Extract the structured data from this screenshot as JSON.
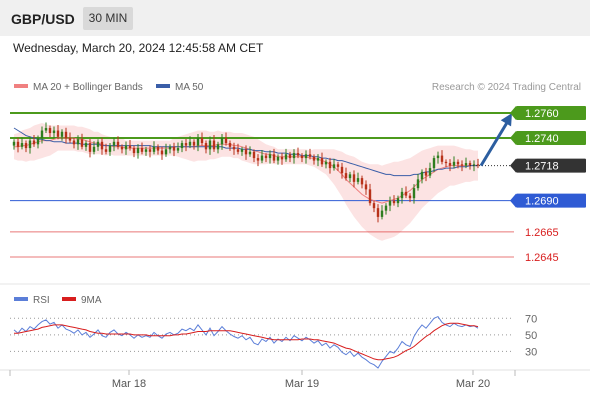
{
  "header": {
    "symbol": "GBP/USD",
    "interval": "30 MIN",
    "datetime": "Wednesday, March 20, 2024 12:45:58 AM CET"
  },
  "legend": {
    "ma20_label": "MA 20 + Bollinger Bands",
    "ma50_label": "MA 50",
    "credit": "Research © 2024 Trading Central"
  },
  "rsi_legend": {
    "rsi_label": "RSI",
    "ma_label": "9MA"
  },
  "colors": {
    "up": "#2e7d1f",
    "down": "#b8321a",
    "ma20": "#f08080",
    "ma50": "#3a5ea8",
    "band": "#fbd9d9",
    "resistance": "#4c9a1c",
    "support": "#2f5bd4",
    "target": "#d81e1e",
    "arrow": "#2c5ea0",
    "current": "#333333"
  },
  "chart_data": [
    {
      "type": "candlestick",
      "ylim": [
        1.2625,
        1.2772
      ],
      "x_ticks": [
        "Mar 18",
        "Mar 19",
        "Mar 20"
      ],
      "current_price": "1.2718",
      "levels": [
        {
          "value": 1.276,
          "label": "1.2760",
          "kind": "resistance"
        },
        {
          "value": 1.274,
          "label": "1.2740",
          "kind": "resistance"
        },
        {
          "value": 1.269,
          "label": "1.2690",
          "kind": "support"
        },
        {
          "value": 1.2665,
          "label": "1.2665",
          "kind": "target"
        },
        {
          "value": 1.2645,
          "label": "1.2645",
          "kind": "target"
        }
      ],
      "projection": {
        "from": 1.2718,
        "to": 1.276
      },
      "close": [
        1.2737,
        1.2733,
        1.2736,
        1.2732,
        1.2738,
        1.2735,
        1.274,
        1.2746,
        1.2748,
        1.2744,
        1.2746,
        1.2741,
        1.2745,
        1.274,
        1.2738,
        1.2735,
        1.2739,
        1.2733,
        1.2736,
        1.2729,
        1.2733,
        1.2737,
        1.2731,
        1.2729,
        1.2734,
        1.2737,
        1.2733,
        1.2731,
        1.2734,
        1.2732,
        1.2728,
        1.2732,
        1.2729,
        1.2731,
        1.2729,
        1.2733,
        1.273,
        1.2727,
        1.2731,
        1.2733,
        1.273,
        1.2732,
        1.2736,
        1.2734,
        1.2737,
        1.2734,
        1.274,
        1.2736,
        1.2731,
        1.2738,
        1.2731,
        1.2735,
        1.274,
        1.2736,
        1.2733,
        1.2731,
        1.2729,
        1.2731,
        1.2727,
        1.2729,
        1.2724,
        1.2722,
        1.2726,
        1.2724,
        1.2727,
        1.2722,
        1.2725,
        1.2723,
        1.2727,
        1.2724,
        1.2728,
        1.2726,
        1.2724,
        1.2727,
        1.2725,
        1.2722,
        1.2724,
        1.2719,
        1.2721,
        1.2716,
        1.2719,
        1.2717,
        1.2712,
        1.2708,
        1.2711,
        1.2705,
        1.2708,
        1.2703,
        1.2699,
        1.2688,
        1.2684,
        1.2677,
        1.2682,
        1.2686,
        1.269,
        1.2688,
        1.2692,
        1.2697,
        1.2694,
        1.2692,
        1.27,
        1.2707,
        1.2713,
        1.271,
        1.2716,
        1.2724,
        1.2726,
        1.2721,
        1.272,
        1.2718,
        1.2721,
        1.2719,
        1.2718,
        1.272,
        1.2718,
        1.2719,
        1.2718
      ],
      "ma20": [
        1.2733,
        1.2733,
        1.2734,
        1.2734,
        1.2735,
        1.2736,
        1.2737,
        1.2738,
        1.2738,
        1.2738,
        1.2739,
        1.274,
        1.274,
        1.274,
        1.274,
        1.274,
        1.2739,
        1.2739,
        1.2738,
        1.2737,
        1.2736,
        1.2736,
        1.2735,
        1.2734,
        1.2734,
        1.2733,
        1.2733,
        1.2733,
        1.2732,
        1.2732,
        1.2732,
        1.2732,
        1.2732,
        1.2732,
        1.2732,
        1.2732,
        1.2732,
        1.2732,
        1.2732,
        1.2732,
        1.2733,
        1.2733,
        1.2733,
        1.2733,
        1.2733,
        1.2733,
        1.2734,
        1.2734,
        1.2734,
        1.2734,
        1.2734,
        1.2735,
        1.2735,
        1.2735,
        1.2735,
        1.2734,
        1.2734,
        1.2733,
        1.2732,
        1.2731,
        1.273,
        1.2729,
        1.2728,
        1.2727,
        1.2727,
        1.2726,
        1.2725,
        1.2725,
        1.2725,
        1.2725,
        1.2725,
        1.2725,
        1.2725,
        1.2725,
        1.2724,
        1.2724,
        1.2723,
        1.2722,
        1.2721,
        1.2719,
        1.2717,
        1.2714,
        1.2711,
        1.2707,
        1.2704,
        1.2701,
        1.2698,
        1.2695,
        1.2693,
        1.2691,
        1.269,
        1.2689,
        1.2688,
        1.2689,
        1.269,
        1.2691,
        1.2692,
        1.2694,
        1.2696,
        1.2698,
        1.2701,
        1.2704,
        1.2707,
        1.2709,
        1.2711,
        1.2713,
        1.2715,
        1.2716,
        1.2717,
        1.2718,
        1.2718,
        1.2718,
        1.2718,
        1.2718,
        1.2718,
        1.2718,
        1.2718
      ],
      "ma50": [
        1.2748,
        1.2746,
        1.2744,
        1.2742,
        1.2741,
        1.274,
        1.2739,
        1.2739,
        1.2738,
        1.2738,
        1.2737,
        1.2737,
        1.2737,
        1.2736,
        1.2736,
        1.2736,
        1.2736,
        1.2735,
        1.2735,
        1.2735,
        1.2735,
        1.2735,
        1.2734,
        1.2734,
        1.2734,
        1.2734,
        1.2734,
        1.2734,
        1.2734,
        1.2734,
        1.2734,
        1.2734,
        1.2734,
        1.2734,
        1.2734,
        1.2733,
        1.2733,
        1.2733,
        1.2733,
        1.2733,
        1.2733,
        1.2733,
        1.2733,
        1.2733,
        1.2733,
        1.2733,
        1.2733,
        1.2733,
        1.2733,
        1.2733,
        1.2733,
        1.2733,
        1.2733,
        1.2732,
        1.2732,
        1.2732,
        1.2732,
        1.2731,
        1.2731,
        1.2731,
        1.273,
        1.273,
        1.273,
        1.2729,
        1.2729,
        1.2729,
        1.2728,
        1.2728,
        1.2728,
        1.2727,
        1.2727,
        1.2727,
        1.2726,
        1.2726,
        1.2726,
        1.2725,
        1.2725,
        1.2724,
        1.2724,
        1.2723,
        1.2723,
        1.2722,
        1.2722,
        1.2721,
        1.272,
        1.2719,
        1.2718,
        1.2717,
        1.2716,
        1.2715,
        1.2714,
        1.2713,
        1.2712,
        1.2711,
        1.2711,
        1.271,
        1.271,
        1.271,
        1.271,
        1.271,
        1.2711,
        1.2711,
        1.2712,
        1.2713,
        1.2713,
        1.2714,
        1.2715,
        1.2715,
        1.2716,
        1.2716,
        1.2716,
        1.2717,
        1.2717,
        1.2717,
        1.2718,
        1.2718,
        1.2718
      ],
      "band_width": [
        0.001,
        0.0011,
        0.0012,
        0.0013,
        0.0013,
        0.0014,
        0.0014,
        0.0014,
        0.0013,
        0.0012,
        0.0011,
        0.001,
        0.001,
        0.001,
        0.001,
        0.001,
        0.001,
        0.001,
        0.001,
        0.001,
        0.0009,
        0.0009,
        0.0008,
        0.0008,
        0.0007,
        0.0007,
        0.0007,
        0.0007,
        0.0006,
        0.0006,
        0.0006,
        0.0006,
        0.0006,
        0.0006,
        0.0006,
        0.0006,
        0.0006,
        0.0006,
        0.0006,
        0.0006,
        0.0007,
        0.0008,
        0.0009,
        0.001,
        0.0011,
        0.0012,
        0.0012,
        0.0012,
        0.0012,
        0.0011,
        0.0011,
        0.0011,
        0.001,
        0.001,
        0.001,
        0.001,
        0.001,
        0.0011,
        0.0011,
        0.0011,
        0.0011,
        0.001,
        0.0009,
        0.0008,
        0.0007,
        0.0007,
        0.0006,
        0.0006,
        0.0006,
        0.0006,
        0.0006,
        0.0006,
        0.0006,
        0.0006,
        0.0006,
        0.0007,
        0.0008,
        0.0009,
        0.001,
        0.0012,
        0.0014,
        0.0016,
        0.0018,
        0.002,
        0.0022,
        0.0024,
        0.0025,
        0.0026,
        0.0027,
        0.0028,
        0.0029,
        0.003,
        0.003,
        0.003,
        0.003,
        0.003,
        0.0029,
        0.0028,
        0.0027,
        0.0026,
        0.0025,
        0.0024,
        0.0023,
        0.0022,
        0.0021,
        0.002,
        0.0019,
        0.0018,
        0.0017,
        0.0016,
        0.0016,
        0.0015,
        0.0014,
        0.0013,
        0.0013,
        0.0012,
        0.0012,
        0.0012
      ]
    },
    {
      "type": "line",
      "y_ticks": [
        70,
        50,
        30
      ],
      "ylim": [
        10,
        80
      ],
      "rsi": [
        56,
        52,
        58,
        54,
        60,
        57,
        62,
        66,
        68,
        63,
        65,
        58,
        62,
        57,
        55,
        52,
        56,
        50,
        53,
        47,
        51,
        56,
        49,
        47,
        53,
        56,
        51,
        49,
        53,
        50,
        46,
        50,
        47,
        49,
        47,
        53,
        49,
        46,
        51,
        53,
        50,
        52,
        57,
        55,
        58,
        55,
        62,
        56,
        50,
        58,
        49,
        54,
        60,
        55,
        51,
        48,
        46,
        49,
        44,
        47,
        40,
        38,
        45,
        42,
        47,
        40,
        45,
        42,
        47,
        43,
        49,
        46,
        43,
        47,
        44,
        40,
        43,
        37,
        40,
        34,
        38,
        35,
        29,
        26,
        30,
        24,
        28,
        23,
        20,
        16,
        14,
        10,
        18,
        24,
        30,
        28,
        34,
        42,
        38,
        36,
        48,
        56,
        62,
        58,
        64,
        70,
        72,
        65,
        62,
        60,
        64,
        61,
        60,
        62,
        60,
        61,
        58
      ],
      "ma": [
        52,
        52,
        53,
        54,
        55,
        56,
        57,
        59,
        60,
        61,
        62,
        62,
        62,
        61,
        60,
        59,
        58,
        57,
        56,
        54,
        53,
        52,
        52,
        51,
        51,
        51,
        51,
        51,
        51,
        51,
        50,
        50,
        50,
        50,
        49,
        49,
        49,
        49,
        49,
        49,
        50,
        50,
        51,
        51,
        52,
        53,
        54,
        54,
        54,
        55,
        55,
        55,
        55,
        55,
        55,
        54,
        53,
        52,
        51,
        50,
        49,
        48,
        47,
        46,
        45,
        44,
        44,
        44,
        44,
        44,
        44,
        44,
        45,
        45,
        45,
        44,
        44,
        43,
        42,
        41,
        40,
        38,
        36,
        34,
        33,
        31,
        29,
        27,
        25,
        23,
        21,
        20,
        20,
        21,
        22,
        23,
        25,
        28,
        31,
        33,
        36,
        40,
        44,
        48,
        51,
        55,
        58,
        61,
        63,
        64,
        64,
        64,
        63,
        62,
        61,
        61,
        60
      ]
    }
  ]
}
